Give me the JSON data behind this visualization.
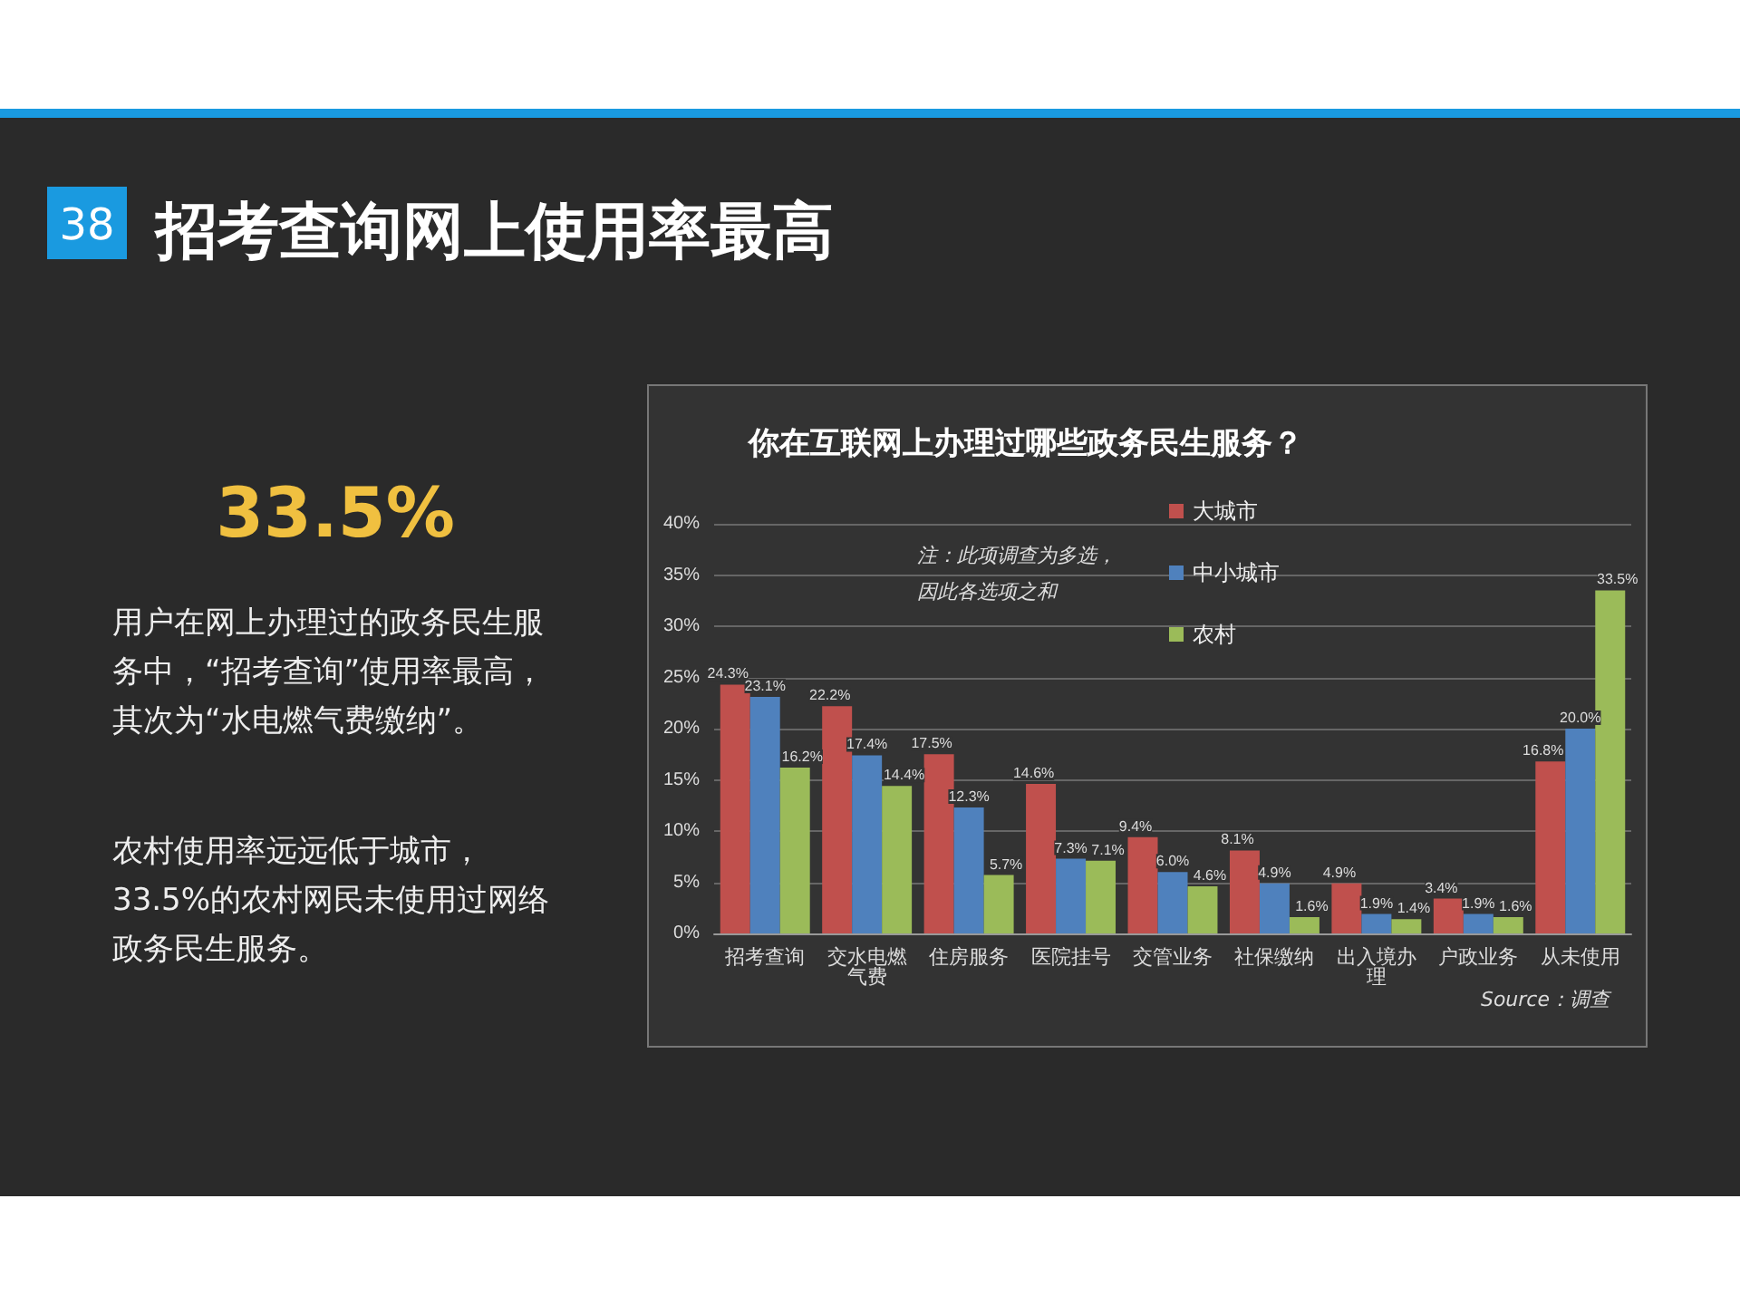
{
  "chart_data": {
    "type": "bar",
    "title": "招考查询网上使用率最高",
    "subtitle": "你在互联网上办理过哪些政务民生服务？",
    "categories": [
      "招考查询",
      "交水电燃气费",
      "住房服务",
      "医院挂号",
      "交管业务",
      "社保缴纳",
      "出入境办理",
      "户政业务",
      "从未使用"
    ],
    "series": [
      {
        "name": "大城市",
        "color": "#c0504d",
        "values": [
          24.3,
          22.2,
          17.5,
          14.6,
          9.4,
          8.1,
          4.9,
          3.4,
          16.8
        ],
        "value_labels": [
          "24.3%",
          "22.2%",
          "17.5%",
          "14.6%",
          "9.4%",
          "8.1%",
          "4.9%",
          "3.4%",
          "16.8%"
        ]
      },
      {
        "name": "中小城市",
        "color": "#4f81bd",
        "values": [
          23.1,
          17.4,
          12.3,
          7.3,
          6.0,
          4.9,
          1.9,
          1.9,
          20.0
        ],
        "value_labels": [
          "23.1%",
          "17.4%",
          "12.3%",
          "7.3%",
          "6.0%",
          "4.9%",
          "1.9%",
          "1.9%",
          "20.0%"
        ]
      },
      {
        "name": "农村",
        "color": "#9bbb59",
        "values": [
          16.2,
          14.4,
          5.7,
          7.1,
          4.6,
          1.6,
          1.4,
          1.6,
          33.5
        ],
        "value_labels": [
          "16.2%",
          "14.4%",
          "5.7%",
          "7.1%",
          "4.6%",
          "1.6%",
          "1.4%",
          "1.6%",
          "33.5%"
        ]
      }
    ],
    "ylim": [
      0,
      40
    ],
    "yticks": [
      {
        "value": 0,
        "label": "0%"
      },
      {
        "value": 5,
        "label": "5%"
      },
      {
        "value": 10,
        "label": "10%"
      },
      {
        "value": 15,
        "label": "15%"
      },
      {
        "value": 20,
        "label": "20%"
      },
      {
        "value": 25,
        "label": "25%"
      },
      {
        "value": 30,
        "label": "30%"
      },
      {
        "value": 35,
        "label": "35%"
      },
      {
        "value": 40,
        "label": "40%"
      }
    ],
    "grid": "y",
    "legend": "top",
    "annotations": [
      "38",
      "33.5%",
      "用户在网上办理过的政务民生服务中，“招考查询”使用率最高，其次为“水电燃气费缴纳”。",
      "农村使用率远远低于城市，33.5%的农村网民未使用过网络政务民生服务。",
      "注：此项调查为多选，因此各选项之和",
      "Source：调查"
    ]
  }
}
